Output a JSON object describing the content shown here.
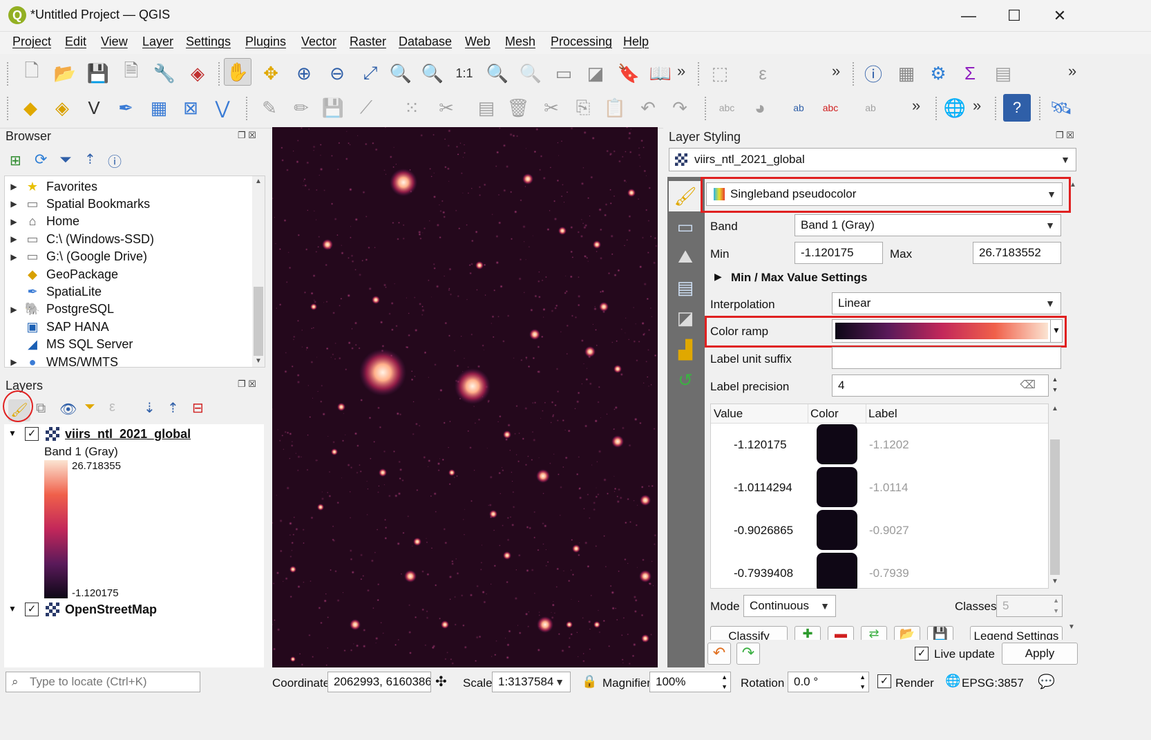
{
  "window": {
    "title": "*Untitled Project — QGIS",
    "logo": "Q",
    "min": "—",
    "max": "☐",
    "close": "✕"
  },
  "menu": [
    "Project",
    "Edit",
    "View",
    "Layer",
    "Settings",
    "Plugins",
    "Vector",
    "Raster",
    "Database",
    "Web",
    "Mesh",
    "Processing",
    "Help"
  ],
  "browser": {
    "title": "Browser",
    "items": [
      {
        "label": "Favorites",
        "icon": "star-icon",
        "glyph": "★",
        "color": "#e8c000",
        "expandable": true
      },
      {
        "label": "Spatial Bookmarks",
        "icon": "bookmark-icon",
        "glyph": "▭",
        "color": "#777",
        "expandable": true
      },
      {
        "label": "Home",
        "icon": "home-icon",
        "glyph": "⌂",
        "color": "#555",
        "expandable": true
      },
      {
        "label": "C:\\ (Windows-SSD)",
        "icon": "folder-icon",
        "glyph": "▭",
        "color": "#777",
        "expandable": true
      },
      {
        "label": "G:\\ (Google Drive)",
        "icon": "folder-icon",
        "glyph": "▭",
        "color": "#777",
        "expandable": true
      },
      {
        "label": "GeoPackage",
        "icon": "geopackage-icon",
        "glyph": "◆",
        "color": "#d8a000",
        "expandable": false
      },
      {
        "label": "SpatiaLite",
        "icon": "spatialite-icon",
        "glyph": "✒",
        "color": "#3a7bd5",
        "expandable": false
      },
      {
        "label": "PostgreSQL",
        "icon": "postgresql-icon",
        "glyph": "🐘",
        "color": "#336791",
        "expandable": true
      },
      {
        "label": "SAP HANA",
        "icon": "sap-hana-icon",
        "glyph": "▣",
        "color": "#1a5fb4",
        "expandable": false
      },
      {
        "label": "MS SQL Server",
        "icon": "mssql-icon",
        "glyph": "◢",
        "color": "#1a5fb4",
        "expandable": false
      },
      {
        "label": "WMS/WMTS",
        "icon": "globe-icon",
        "glyph": "●",
        "color": "#3a7bd5",
        "expandable": true
      }
    ]
  },
  "layers": {
    "title": "Layers",
    "layer1": {
      "name": "viirs_ntl_2021_global",
      "band": "Band 1 (Gray)",
      "max": "26.718355",
      "min": "-1.120175"
    },
    "layer2": {
      "name": "OpenStreetMap"
    }
  },
  "styling": {
    "title": "Layer Styling",
    "layer_select": "viirs_ntl_2021_global",
    "renderer": "Singleband pseudocolor",
    "band_label": "Band",
    "band_value": "Band 1 (Gray)",
    "min_label": "Min",
    "min_value": "-1.120175",
    "max_label": "Max",
    "max_value": "26.7183552",
    "minmax_settings": "Min / Max Value Settings",
    "interp_label": "Interpolation",
    "interp_value": "Linear",
    "ramp_label": "Color ramp",
    "suffix_label": "Label unit suffix",
    "precision_label": "Label precision",
    "precision_value": "4",
    "col_value": "Value",
    "col_color": "Color",
    "col_label": "Label",
    "rows": [
      {
        "value": "-1.120175",
        "label": "-1.1202"
      },
      {
        "value": "-1.0114294",
        "label": "-1.0114"
      },
      {
        "value": "-0.9026865",
        "label": "-0.9027"
      },
      {
        "value": "-0.7939408",
        "label": "-0.7939"
      }
    ],
    "mode_label": "Mode",
    "mode_value": "Continuous",
    "classes_label": "Classes",
    "classes_value": "5",
    "classify": "Classify",
    "legend_settings": "Legend Settings",
    "live_update": "Live update",
    "apply": "Apply"
  },
  "status": {
    "locate_placeholder": "Type to locate (Ctrl+K)",
    "coordinate_label": "Coordinate",
    "coordinate_value": "2062993, 6160386",
    "scale_label": "Scale",
    "scale_value": "1:3137584",
    "magnifier_label": "Magnifier",
    "magnifier_value": "100%",
    "rotation_label": "Rotation",
    "rotation_value": "0.0 °",
    "render_label": "Render",
    "crs": "EPSG:3857"
  },
  "colors": {
    "ramp_start": "#0d0716",
    "ramp_mid1": "#5a1a5a",
    "ramp_mid2": "#c2275a",
    "ramp_mid3": "#f0604a",
    "ramp_end": "#fbe4d2",
    "highlight": "#e02020",
    "map_bg": "#24081c"
  }
}
